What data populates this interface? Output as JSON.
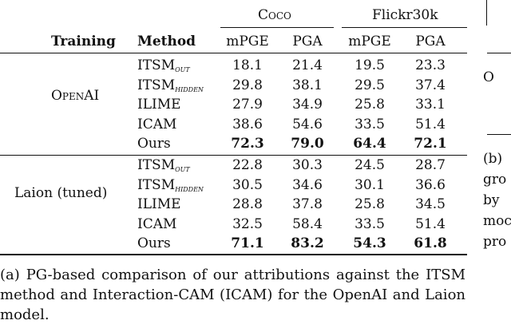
{
  "table": {
    "header_groups": [
      "Coco",
      "Flickr30k"
    ],
    "header": [
      "Training",
      "Method",
      "mPGE",
      "PGA",
      "mPGE",
      "PGA"
    ],
    "groups": [
      {
        "training": "OpenAI",
        "rows": [
          {
            "method": "ITSM",
            "sub": "out",
            "vals": [
              "18.1",
              "21.4",
              "19.5",
              "23.3"
            ],
            "bold": false
          },
          {
            "method": "ITSM",
            "sub": "hidden",
            "vals": [
              "29.8",
              "38.1",
              "29.5",
              "37.4"
            ],
            "bold": false
          },
          {
            "method": "ILIME",
            "sub": "",
            "vals": [
              "27.9",
              "34.9",
              "25.8",
              "33.1"
            ],
            "bold": false
          },
          {
            "method": "ICAM",
            "sub": "",
            "vals": [
              "38.6",
              "54.6",
              "33.5",
              "51.4"
            ],
            "bold": false
          },
          {
            "method": "Ours",
            "sub": "",
            "vals": [
              "72.3",
              "79.0",
              "64.4",
              "72.1"
            ],
            "bold": true
          }
        ]
      },
      {
        "training": "Laion (tuned)",
        "rows": [
          {
            "method": "ITSM",
            "sub": "out",
            "vals": [
              "22.8",
              "30.3",
              "24.5",
              "28.7"
            ],
            "bold": false
          },
          {
            "method": "ITSM",
            "sub": "hidden",
            "vals": [
              "30.5",
              "34.6",
              "30.1",
              "36.6"
            ],
            "bold": false
          },
          {
            "method": "ILIME",
            "sub": "",
            "vals": [
              "28.8",
              "37.8",
              "25.8",
              "34.5"
            ],
            "bold": false
          },
          {
            "method": "ICAM",
            "sub": "",
            "vals": [
              "32.5",
              "58.4",
              "33.5",
              "51.4"
            ],
            "bold": false
          },
          {
            "method": "Ours",
            "sub": "",
            "vals": [
              "71.1",
              "83.2",
              "54.3",
              "61.8"
            ],
            "bold": true
          }
        ]
      }
    ]
  },
  "caption": "(a) PG-based comparison of our attributions against the ITSM method and Interaction-CAM (ICAM) for the OpenAI and Laion model.",
  "side_fragments": [
    "O",
    "(b)",
    "gro",
    "by",
    "moc",
    "pro"
  ]
}
